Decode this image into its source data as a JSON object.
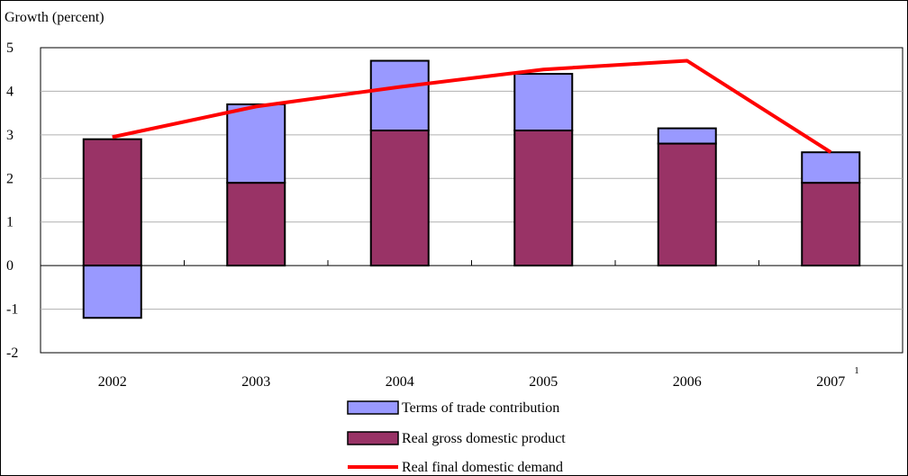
{
  "chart_data": {
    "type": "bar",
    "stacked": true,
    "ylabel": "Growth (percent)",
    "ylim": [
      -2,
      5
    ],
    "yticks": [
      "5",
      "4",
      "3",
      "2",
      "1",
      "0",
      "-1",
      "-2"
    ],
    "ytick_values": [
      5,
      4,
      3,
      2,
      1,
      0,
      -1,
      -2
    ],
    "categories": [
      "2002",
      "2003",
      "2004",
      "2005",
      "2006",
      "2007"
    ],
    "category_footnotes": [
      "",
      "",
      "",
      "",
      "",
      "1"
    ],
    "grid": true,
    "legend_position": "bottom",
    "series": [
      {
        "name": "Terms of trade contribution",
        "kind": "bar",
        "color": "#9999ff",
        "values": [
          -1.2,
          1.8,
          1.6,
          1.3,
          0.35,
          0.7
        ]
      },
      {
        "name": "Real gross domestic product",
        "kind": "bar",
        "color": "#993366",
        "values": [
          2.9,
          1.9,
          3.1,
          3.1,
          2.8,
          1.9
        ]
      },
      {
        "name": "Real final domestic demand",
        "kind": "line",
        "color": "#ff0000",
        "values": [
          2.95,
          3.65,
          4.1,
          4.5,
          4.7,
          2.6
        ]
      }
    ]
  }
}
